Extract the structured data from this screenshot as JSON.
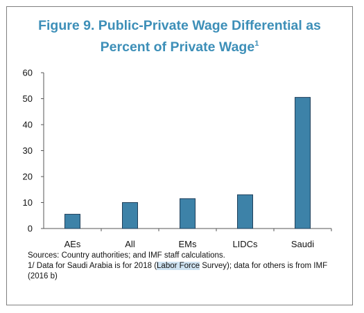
{
  "title": {
    "line1": "Figure 9. Public-Private Wage Differential as",
    "line2": "Percent of Private Wage",
    "superscript": "1"
  },
  "chart_data": {
    "type": "bar",
    "categories": [
      "AEs",
      "All",
      "EMs",
      "LIDCs",
      "Saudi"
    ],
    "values": [
      5.5,
      10,
      11.5,
      13,
      50.5
    ],
    "ylim": [
      0,
      60
    ],
    "yticks": [
      0,
      10,
      20,
      30,
      40,
      50,
      60
    ],
    "grid": false,
    "bar_color": "#3d82a8",
    "bar_edge_color": "#1f3f5a"
  },
  "notes": {
    "sources": "Sources: Country authorities; and IMF staff calculations.",
    "footnote_pre": "1/  Data for Saudi Arabia is for 2018 (",
    "footnote_highlight": "Labor Force",
    "footnote_post": " Survey); data for others is from IMF (2016 b)"
  },
  "colors": {
    "title": "#3d8fb8",
    "highlight": "#cfe3f2"
  }
}
